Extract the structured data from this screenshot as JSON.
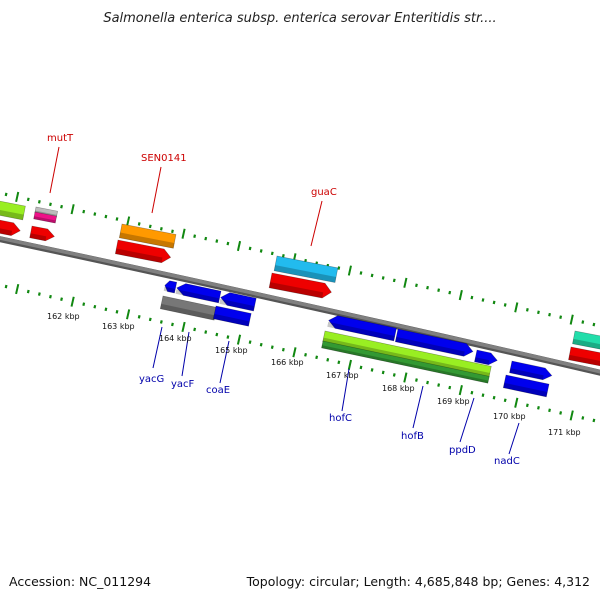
{
  "title": "Salmonella enterica subsp. enterica serovar Enteritidis str....",
  "footer": {
    "accession": "Accession: NC_011294",
    "summary": "Topology: circular; Length: 4,685,848 bp; Genes: 4,312"
  },
  "colors": {
    "backbone": "#808080",
    "tick": "#118811",
    "above_label": "#cc0000",
    "below_label": "#0000aa",
    "red": "#ee0000",
    "blue": "#0000ee",
    "orange": "#ff9900",
    "cyan": "#22bbee",
    "lime": "#99ee22",
    "green": "#339933",
    "gray": "#777777",
    "teal": "#22ddaa",
    "magenta": "#ee1188",
    "silver": "#bbbbbb"
  },
  "kbp_labels": [
    "162 kbp",
    "163 kbp",
    "164 kbp",
    "165 kbp",
    "166 kbp",
    "167 kbp",
    "168 kbp",
    "169 kbp",
    "170 kbp",
    "171 kbp"
  ],
  "above_labels": [
    "mutT",
    "SEN0141",
    "guaC"
  ],
  "below_labels": [
    "yacG",
    "yacF",
    "coaE",
    "hofC",
    "hofB",
    "ppdD",
    "nadC"
  ]
}
